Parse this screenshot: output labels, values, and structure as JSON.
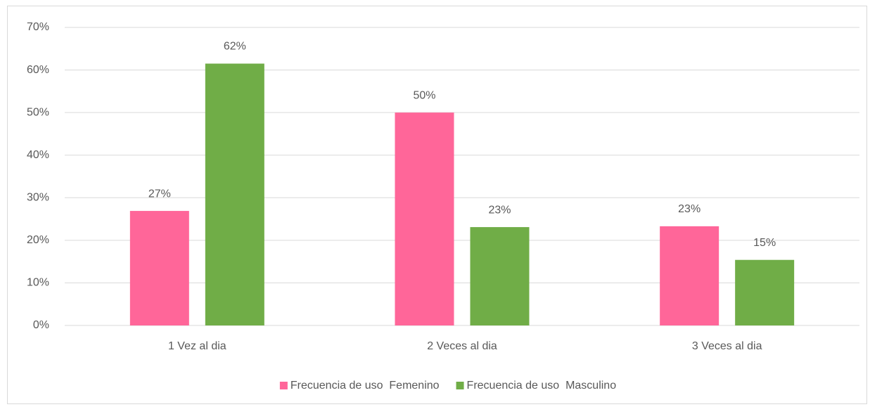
{
  "chart_data": {
    "type": "bar",
    "categories": [
      "1 Vez al dia",
      "2 Veces al dia",
      "3 Veces al dia"
    ],
    "series": [
      {
        "name": "Frecuencia de uso  Femenino",
        "color": "#ff6699",
        "values": [
          26.9,
          50,
          23.3
        ],
        "value_labels": [
          "27%",
          "50%",
          "23%"
        ]
      },
      {
        "name": "Frecuencia de uso  Masculino",
        "color": "#70ad47",
        "values": [
          61.5,
          23.1,
          15.4
        ],
        "value_labels": [
          "62%",
          "23%",
          "15%"
        ]
      }
    ],
    "ylim": [
      0,
      70
    ],
    "yticks": [
      {
        "value": 0,
        "label": "0%"
      },
      {
        "value": 10,
        "label": "10%"
      },
      {
        "value": 20,
        "label": "20%"
      },
      {
        "value": 30,
        "label": "30%"
      },
      {
        "value": 40,
        "label": "40%"
      },
      {
        "value": 50,
        "label": "50%"
      },
      {
        "value": 60,
        "label": "60%"
      },
      {
        "value": 70,
        "label": "70%"
      }
    ],
    "grid": true,
    "legend": "bottom"
  }
}
